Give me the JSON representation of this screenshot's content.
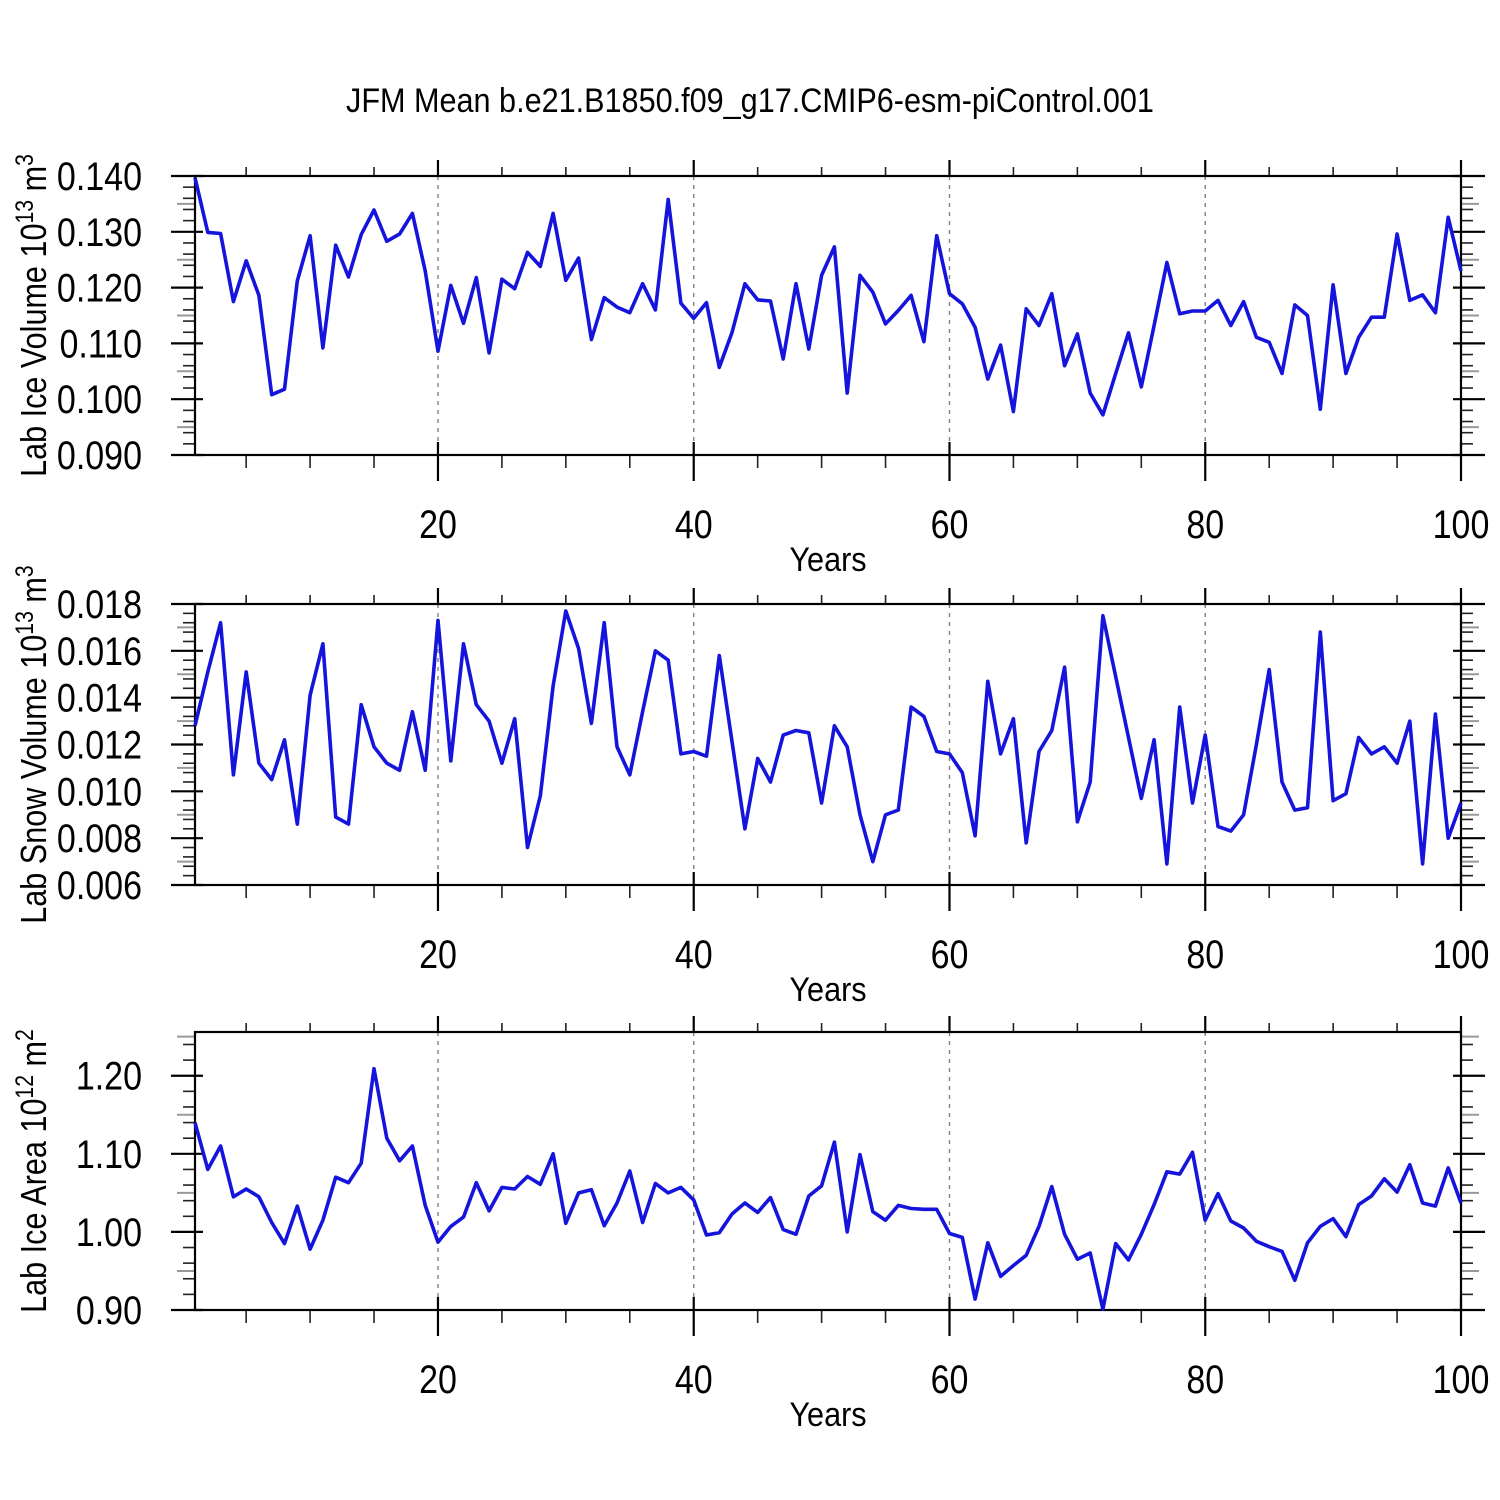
{
  "title": "JFM Mean b.e21.B1850.f09_g17.CMIP6-esm-piControl.001",
  "line_color": "#1414dc",
  "grid_color": "#808080",
  "chart_data": [
    {
      "id": "lab-ice-volume",
      "type": "line",
      "ylabel": "Lab Ice Volume 10^13 m^3",
      "ylabel_parts": [
        {
          "t": "Lab Ice Volume 10",
          "sup": false
        },
        {
          "t": "13",
          "sup": true
        },
        {
          "t": " m",
          "sup": false
        },
        {
          "t": "3",
          "sup": true
        }
      ],
      "xlabel": "Years",
      "xlim": [
        1,
        100
      ],
      "ylim": [
        0.09,
        0.14
      ],
      "yticks": [
        0.09,
        0.1,
        0.11,
        0.12,
        0.13,
        0.14
      ],
      "ytick_labels": [
        "0.090",
        "0.100",
        "0.110",
        "0.120",
        "0.130",
        "0.140"
      ],
      "xticks": [
        20,
        40,
        60,
        80,
        100
      ],
      "xtick_labels": [
        "20",
        "40",
        "60",
        "80",
        "100"
      ],
      "x_minor_step": 5,
      "grid_x": [
        20,
        40,
        60,
        80
      ],
      "x_start_year": 1,
      "values": [
        0.1397,
        0.1299,
        0.1297,
        0.1175,
        0.1248,
        0.1186,
        0.1008,
        0.1018,
        0.1212,
        0.1293,
        0.1092,
        0.1276,
        0.1219,
        0.1295,
        0.1339,
        0.1283,
        0.1296,
        0.1333,
        0.123,
        0.1086,
        0.1204,
        0.1136,
        0.1218,
        0.1083,
        0.1215,
        0.1198,
        0.1263,
        0.1238,
        0.1333,
        0.1213,
        0.1253,
        0.1107,
        0.1182,
        0.1165,
        0.1155,
        0.1207,
        0.116,
        0.1358,
        0.1172,
        0.1145,
        0.1173,
        0.1057,
        0.112,
        0.1207,
        0.1178,
        0.1176,
        0.1072,
        0.1207,
        0.109,
        0.1222,
        0.1273,
        0.1011,
        0.1222,
        0.1192,
        0.1135,
        0.1159,
        0.1186,
        0.1103,
        0.1293,
        0.1189,
        0.1171,
        0.1129,
        0.1036,
        0.1097,
        0.0978,
        0.1162,
        0.1132,
        0.1189,
        0.106,
        0.1117,
        0.1011,
        0.0972,
        0.1046,
        0.1119,
        0.1022,
        0.1132,
        0.1245,
        0.1153,
        0.1158,
        0.1158,
        0.1177,
        0.1132,
        0.1175,
        0.1111,
        0.1102,
        0.1046,
        0.1169,
        0.115,
        0.0982,
        0.1205,
        0.1046,
        0.1111,
        0.1147,
        0.1147,
        0.1296,
        0.1177,
        0.1187,
        0.1155,
        0.1326,
        0.123
      ]
    },
    {
      "id": "lab-snow-volume",
      "type": "line",
      "ylabel": "Lab Snow Volume 10^13 m^3",
      "ylabel_parts": [
        {
          "t": "Lab Snow Volume 10",
          "sup": false
        },
        {
          "t": "13",
          "sup": true
        },
        {
          "t": " m",
          "sup": false
        },
        {
          "t": "3",
          "sup": true
        }
      ],
      "xlabel": "Years",
      "xlim": [
        1,
        100
      ],
      "ylim": [
        0.006,
        0.018
      ],
      "yticks": [
        0.006,
        0.008,
        0.01,
        0.012,
        0.014,
        0.016,
        0.018
      ],
      "ytick_labels": [
        "0.006",
        "0.008",
        "0.010",
        "0.012",
        "0.014",
        "0.016",
        "0.018"
      ],
      "xticks": [
        20,
        40,
        60,
        80,
        100
      ],
      "xtick_labels": [
        "20",
        "40",
        "60",
        "80",
        "100"
      ],
      "x_minor_step": 5,
      "grid_x": [
        20,
        40,
        60,
        80
      ],
      "x_start_year": 1,
      "values": [
        0.0128,
        0.0151,
        0.0172,
        0.0107,
        0.0151,
        0.0112,
        0.0105,
        0.0122,
        0.0086,
        0.0141,
        0.0163,
        0.0089,
        0.0086,
        0.0137,
        0.0119,
        0.0112,
        0.0109,
        0.0134,
        0.0109,
        0.0173,
        0.0113,
        0.0163,
        0.0137,
        0.013,
        0.0112,
        0.0131,
        0.0076,
        0.0098,
        0.0145,
        0.0177,
        0.0161,
        0.0129,
        0.0172,
        0.0119,
        0.0107,
        0.0134,
        0.016,
        0.0156,
        0.0116,
        0.0117,
        0.0115,
        0.0158,
        0.0121,
        0.0084,
        0.0114,
        0.0104,
        0.0124,
        0.0126,
        0.0125,
        0.0095,
        0.0128,
        0.0119,
        0.009,
        0.007,
        0.009,
        0.0092,
        0.0136,
        0.0132,
        0.0117,
        0.0116,
        0.0108,
        0.0081,
        0.0147,
        0.0116,
        0.0131,
        0.0078,
        0.0117,
        0.0126,
        0.0153,
        0.0087,
        0.0104,
        0.0175,
        0.0149,
        0.0123,
        0.0097,
        0.0122,
        0.0069,
        0.0136,
        0.0095,
        0.0124,
        0.0085,
        0.0083,
        0.009,
        0.012,
        0.0152,
        0.0104,
        0.0092,
        0.0093,
        0.0168,
        0.0096,
        0.0099,
        0.0123,
        0.0116,
        0.0119,
        0.0112,
        0.013,
        0.0069,
        0.0133,
        0.008,
        0.0095
      ]
    },
    {
      "id": "lab-ice-area",
      "type": "line",
      "ylabel": "Lab Ice Area 10^12 m^2",
      "ylabel_parts": [
        {
          "t": "Lab Ice Area 10",
          "sup": false
        },
        {
          "t": "12",
          "sup": true
        },
        {
          "t": " m",
          "sup": false
        },
        {
          "t": "2",
          "sup": true
        }
      ],
      "xlabel": "Years",
      "xlim": [
        1,
        100
      ],
      "ylim": [
        0.9,
        1.256
      ],
      "yticks": [
        0.9,
        1.0,
        1.1,
        1.2
      ],
      "ytick_labels": [
        "0.90",
        "1.00",
        "1.10",
        "1.20"
      ],
      "xticks": [
        20,
        40,
        60,
        80,
        100
      ],
      "xtick_labels": [
        "20",
        "40",
        "60",
        "80",
        "100"
      ],
      "x_minor_step": 5,
      "grid_x": [
        20,
        40,
        60,
        80
      ],
      "x_start_year": 1,
      "values": [
        1.14,
        1.08,
        1.11,
        1.045,
        1.055,
        1.045,
        1.012,
        0.985,
        1.033,
        0.978,
        1.015,
        1.07,
        1.063,
        1.088,
        1.209,
        1.12,
        1.091,
        1.11,
        1.034,
        0.987,
        1.007,
        1.019,
        1.063,
        1.027,
        1.057,
        1.055,
        1.071,
        1.061,
        1.1,
        1.011,
        1.05,
        1.054,
        1.008,
        1.037,
        1.078,
        1.012,
        1.062,
        1.05,
        1.057,
        1.041,
        0.996,
        0.999,
        1.023,
        1.037,
        1.025,
        1.044,
        1.003,
        0.997,
        1.046,
        1.059,
        1.115,
        1.0,
        1.099,
        1.026,
        1.015,
        1.034,
        1.03,
        1.029,
        1.029,
        0.998,
        0.993,
        0.914,
        0.986,
        0.943,
        0.957,
        0.97,
        1.007,
        1.058,
        0.997,
        0.965,
        0.973,
        0.901,
        0.985,
        0.964,
        0.997,
        1.035,
        1.077,
        1.074,
        1.102,
        1.015,
        1.049,
        1.014,
        1.005,
        0.988,
        0.981,
        0.975,
        0.938,
        0.986,
        1.007,
        1.017,
        0.994,
        1.035,
        1.046,
        1.068,
        1.051,
        1.086,
        1.037,
        1.033,
        1.082,
        1.037
      ]
    }
  ]
}
